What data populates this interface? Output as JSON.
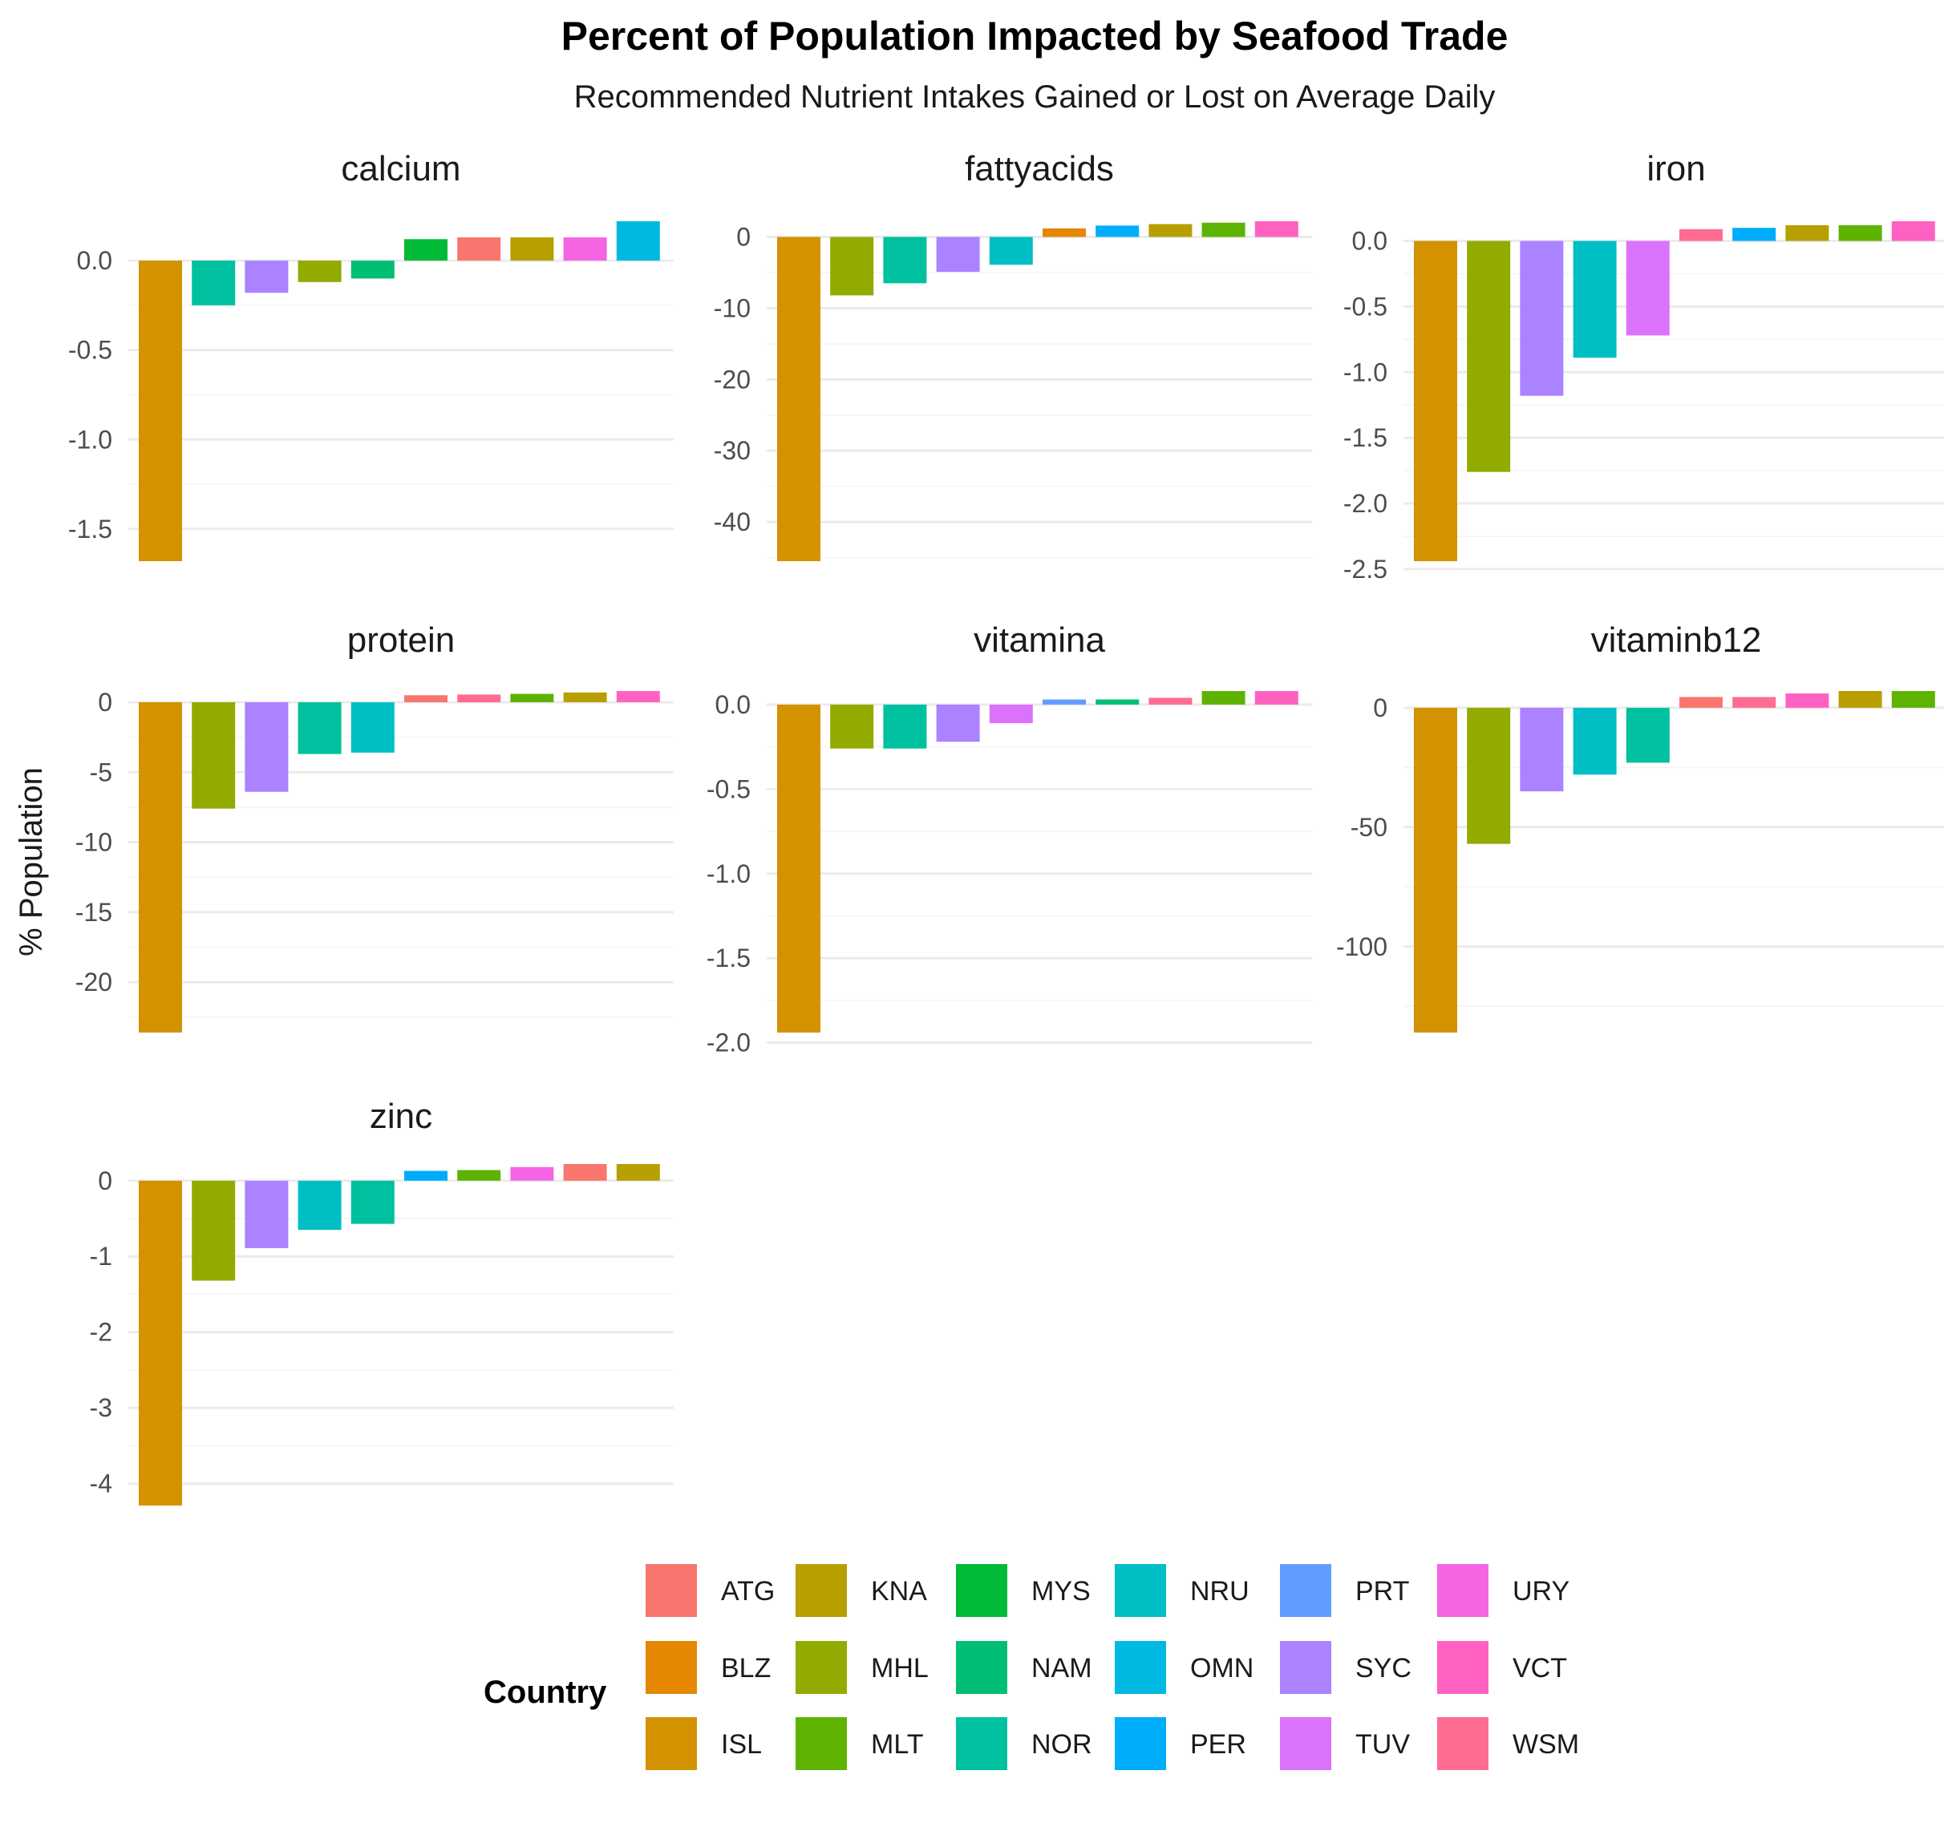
{
  "chart_data": {
    "type": "bar",
    "title": "Percent of Population Impacted by Seafood Trade",
    "subtitle": "Recommended Nutrient Intakes Gained or Lost on Average Daily",
    "ylabel": "% Population",
    "legend": {
      "title": "Country",
      "placement": "bottom",
      "entries": [
        {
          "name": "ATG",
          "color": "#F8766D"
        },
        {
          "name": "BLZ",
          "color": "#E58700"
        },
        {
          "name": "ISL",
          "color": "#D39200"
        },
        {
          "name": "KNA",
          "color": "#B79F00"
        },
        {
          "name": "MHL",
          "color": "#93AA00"
        },
        {
          "name": "MLT",
          "color": "#5EB300"
        },
        {
          "name": "MYS",
          "color": "#00BA38"
        },
        {
          "name": "NAM",
          "color": "#00BF74"
        },
        {
          "name": "NOR",
          "color": "#00C19F"
        },
        {
          "name": "NRU",
          "color": "#00BFC4"
        },
        {
          "name": "OMN",
          "color": "#00B9E3"
        },
        {
          "name": "PER",
          "color": "#00ADFA"
        },
        {
          "name": "PRT",
          "color": "#619CFF"
        },
        {
          "name": "SYC",
          "color": "#AB82FF"
        },
        {
          "name": "TUV",
          "color": "#DB72FB"
        },
        {
          "name": "URY",
          "color": "#F564E3"
        },
        {
          "name": "VCT",
          "color": "#FF61C3"
        },
        {
          "name": "WSM",
          "color": "#FF6C91"
        }
      ]
    },
    "panels": [
      {
        "facet": "calcium",
        "ylim": [
          -1.68,
          0.22
        ],
        "yticks": [
          0.0,
          -0.5,
          -1.0,
          -1.5
        ],
        "tick_labels": [
          "0.0",
          "-0.5",
          "-1.0",
          "-1.5"
        ],
        "bars": [
          {
            "country": "ISL",
            "value": -1.68
          },
          {
            "country": "NOR",
            "value": -0.25
          },
          {
            "country": "SYC",
            "value": -0.18
          },
          {
            "country": "MHL",
            "value": -0.12
          },
          {
            "country": "NAM",
            "value": -0.1
          },
          {
            "country": "MYS",
            "value": 0.12
          },
          {
            "country": "ATG",
            "value": 0.13
          },
          {
            "country": "KNA",
            "value": 0.13
          },
          {
            "country": "URY",
            "value": 0.13
          },
          {
            "country": "OMN",
            "value": 0.22
          }
        ]
      },
      {
        "facet": "fattyacids",
        "ylim": [
          -45.5,
          2.2
        ],
        "yticks": [
          0,
          -10,
          -20,
          -30,
          -40
        ],
        "tick_labels": [
          "0",
          "-10",
          "-20",
          "-30",
          "-40"
        ],
        "bars": [
          {
            "country": "ISL",
            "value": -45.5
          },
          {
            "country": "MHL",
            "value": -8.2
          },
          {
            "country": "NOR",
            "value": -6.5
          },
          {
            "country": "SYC",
            "value": -4.9
          },
          {
            "country": "NRU",
            "value": -3.9
          },
          {
            "country": "BLZ",
            "value": 1.2
          },
          {
            "country": "PER",
            "value": 1.6
          },
          {
            "country": "KNA",
            "value": 1.8
          },
          {
            "country": "MLT",
            "value": 2.0
          },
          {
            "country": "VCT",
            "value": 2.2
          }
        ]
      },
      {
        "facet": "iron",
        "ylim": [
          -2.44,
          0.15
        ],
        "yticks": [
          0.0,
          -0.5,
          -1.0,
          -1.5,
          -2.0,
          -2.5
        ],
        "tick_labels": [
          "0.0",
          "-0.5",
          "-1.0",
          "-1.5",
          "-2.0",
          "-2.5"
        ],
        "bars": [
          {
            "country": "ISL",
            "value": -2.44
          },
          {
            "country": "MHL",
            "value": -1.76
          },
          {
            "country": "SYC",
            "value": -1.18
          },
          {
            "country": "NRU",
            "value": -0.89
          },
          {
            "country": "TUV",
            "value": -0.72
          },
          {
            "country": "WSM",
            "value": 0.09
          },
          {
            "country": "PER",
            "value": 0.1
          },
          {
            "country": "KNA",
            "value": 0.12
          },
          {
            "country": "MLT",
            "value": 0.12
          },
          {
            "country": "VCT",
            "value": 0.15
          }
        ]
      },
      {
        "facet": "protein",
        "ylim": [
          -23.6,
          0.8
        ],
        "yticks": [
          0,
          -5,
          -10,
          -15,
          -20
        ],
        "tick_labels": [
          "0",
          "-5",
          "-10",
          "-15",
          "-20"
        ],
        "bars": [
          {
            "country": "ISL",
            "value": -23.6
          },
          {
            "country": "MHL",
            "value": -7.6
          },
          {
            "country": "SYC",
            "value": -6.4
          },
          {
            "country": "NOR",
            "value": -3.7
          },
          {
            "country": "NRU",
            "value": -3.6
          },
          {
            "country": "ATG",
            "value": 0.5
          },
          {
            "country": "WSM",
            "value": 0.55
          },
          {
            "country": "MLT",
            "value": 0.6
          },
          {
            "country": "KNA",
            "value": 0.7
          },
          {
            "country": "VCT",
            "value": 0.8
          }
        ]
      },
      {
        "facet": "vitamina",
        "ylim": [
          -1.94,
          0.08
        ],
        "yticks": [
          0.0,
          -0.5,
          -1.0,
          -1.5,
          -2.0
        ],
        "tick_labels": [
          "0.0",
          "-0.5",
          "-1.0",
          "-1.5",
          "-2.0"
        ],
        "bars": [
          {
            "country": "ISL",
            "value": -1.94
          },
          {
            "country": "MHL",
            "value": -0.26
          },
          {
            "country": "NOR",
            "value": -0.26
          },
          {
            "country": "SYC",
            "value": -0.22
          },
          {
            "country": "TUV",
            "value": -0.11
          },
          {
            "country": "PRT",
            "value": 0.03
          },
          {
            "country": "NAM",
            "value": 0.03
          },
          {
            "country": "WSM",
            "value": 0.04
          },
          {
            "country": "MLT",
            "value": 0.08
          },
          {
            "country": "VCT",
            "value": 0.08
          }
        ]
      },
      {
        "facet": "vitaminb12",
        "ylim": [
          -136,
          7
        ],
        "yticks": [
          0,
          -50,
          -100
        ],
        "tick_labels": [
          "0",
          "-50",
          "-100"
        ],
        "bars": [
          {
            "country": "ISL",
            "value": -136
          },
          {
            "country": "MHL",
            "value": -57
          },
          {
            "country": "SYC",
            "value": -35
          },
          {
            "country": "NRU",
            "value": -28
          },
          {
            "country": "NOR",
            "value": -23
          },
          {
            "country": "ATG",
            "value": 4.5
          },
          {
            "country": "WSM",
            "value": 4.5
          },
          {
            "country": "VCT",
            "value": 6
          },
          {
            "country": "KNA",
            "value": 7
          },
          {
            "country": "MLT",
            "value": 7
          }
        ]
      },
      {
        "facet": "zinc",
        "ylim": [
          -4.29,
          0.22
        ],
        "yticks": [
          0,
          -1,
          -2,
          -3,
          -4
        ],
        "tick_labels": [
          "0",
          "-1",
          "-2",
          "-3",
          "-4"
        ],
        "bars": [
          {
            "country": "ISL",
            "value": -4.29
          },
          {
            "country": "MHL",
            "value": -1.32
          },
          {
            "country": "SYC",
            "value": -0.89
          },
          {
            "country": "NRU",
            "value": -0.65
          },
          {
            "country": "NOR",
            "value": -0.57
          },
          {
            "country": "PER",
            "value": 0.13
          },
          {
            "country": "MLT",
            "value": 0.14
          },
          {
            "country": "URY",
            "value": 0.18
          },
          {
            "country": "ATG",
            "value": 0.22
          },
          {
            "country": "KNA",
            "value": 0.22
          }
        ]
      }
    ]
  }
}
